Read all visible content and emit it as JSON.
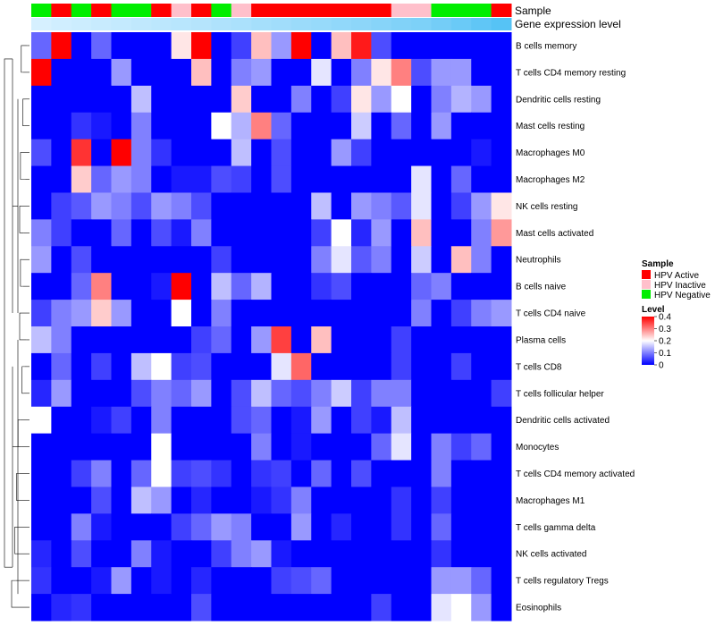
{
  "chart_data": {
    "type": "heatmap",
    "title": "",
    "annotations": {
      "sample_label": "Sample",
      "expression_label": "Gene expression level",
      "sample_groups": [
        "Negative",
        "Active",
        "Negative",
        "Active",
        "Negative",
        "Negative",
        "Active",
        "Inactive",
        "Active",
        "Negative",
        "Inactive",
        "Active",
        "Active",
        "Active",
        "Active",
        "Active",
        "Active",
        "Active",
        "Inactive",
        "Inactive",
        "Negative",
        "Negative",
        "Negative",
        "Active"
      ],
      "expression_levels": [
        0.05,
        0.08,
        0.1,
        0.12,
        0.14,
        0.16,
        0.18,
        0.2,
        0.22,
        0.25,
        0.27,
        0.3,
        0.32,
        0.35,
        0.37,
        0.4,
        0.42,
        0.45,
        0.48,
        0.5,
        0.55,
        0.6,
        0.65,
        0.7
      ]
    },
    "row_labels": [
      "B cells memory",
      "T cells CD4 memory resting",
      "Dendritic cells resting",
      "Mast cells resting",
      "Macrophages M0",
      "Macrophages M2",
      "NK cells resting",
      "Mast cells activated",
      "Neutrophils",
      "B cells naive",
      "T cells CD4 naive",
      "Plasma cells",
      "T cells CD8",
      "T cells follicular helper",
      "Dendritic cells activated",
      "Monocytes",
      "T cells CD4 memory activated",
      "Macrophages M1",
      "T cells gamma delta",
      "NK cells activated",
      "T cells regulatory  Tregs",
      "Eosinophils"
    ],
    "values": [
      [
        0.08,
        0.4,
        0,
        0.08,
        0,
        0,
        0,
        0.22,
        0.4,
        0,
        0.05,
        0.25,
        0.12,
        0.4,
        0,
        0.25,
        0.38,
        0.06,
        0,
        0,
        0,
        0,
        0,
        0
      ],
      [
        0.4,
        0,
        0,
        0,
        0.12,
        0,
        0,
        0,
        0.25,
        0,
        0.1,
        0.12,
        0,
        0,
        0.18,
        0,
        0.1,
        0.22,
        0.3,
        0.06,
        0.12,
        0.12,
        0,
        0
      ],
      [
        0,
        0,
        0,
        0,
        0,
        0.15,
        0,
        0,
        0,
        0,
        0.24,
        0,
        0,
        0.1,
        0,
        0.05,
        0.22,
        0.12,
        0.2,
        0,
        0.1,
        0.14,
        0.12,
        0
      ],
      [
        0,
        0,
        0.04,
        0.02,
        0,
        0.1,
        0,
        0,
        0,
        0.2,
        0.14,
        0.3,
        0.08,
        0,
        0,
        0,
        0.16,
        0,
        0.08,
        0,
        0.12,
        0,
        0,
        0
      ],
      [
        0.06,
        0,
        0.36,
        0,
        0.4,
        0.1,
        0.04,
        0,
        0,
        0,
        0.15,
        0,
        0.06,
        0,
        0,
        0.12,
        0.05,
        0,
        0,
        0,
        0,
        0,
        0.02,
        0
      ],
      [
        0,
        0,
        0.24,
        0.08,
        0.12,
        0.1,
        0,
        0.02,
        0.02,
        0.06,
        0.05,
        0,
        0.06,
        0,
        0,
        0,
        0,
        0,
        0,
        0.18,
        0,
        0.08,
        0,
        0
      ],
      [
        0,
        0.05,
        0.07,
        0.12,
        0.1,
        0.06,
        0.12,
        0.1,
        0.06,
        0,
        0,
        0,
        0,
        0,
        0.15,
        0,
        0.12,
        0.1,
        0.07,
        0.18,
        0,
        0.05,
        0.12,
        0.22
      ],
      [
        0.1,
        0.05,
        0,
        0,
        0.08,
        0,
        0.06,
        0.02,
        0.1,
        0,
        0,
        0,
        0,
        0,
        0.05,
        0.2,
        0.03,
        0.12,
        0,
        0.25,
        0,
        0,
        0.1,
        0.28
      ],
      [
        0.12,
        0,
        0.06,
        0,
        0,
        0,
        0,
        0,
        0,
        0.05,
        0,
        0,
        0,
        0,
        0.1,
        0.18,
        0.07,
        0.1,
        0,
        0.16,
        0,
        0.25,
        0.1,
        0
      ],
      [
        0,
        0,
        0.08,
        0.3,
        0,
        0,
        0.02,
        0.4,
        0,
        0.15,
        0.08,
        0.14,
        0,
        0,
        0.04,
        0.06,
        0,
        0,
        0,
        0.08,
        0.1,
        0,
        0,
        0
      ],
      [
        0.05,
        0.1,
        0.12,
        0.24,
        0.12,
        0,
        0,
        0.2,
        0,
        0.1,
        0,
        0,
        0,
        0,
        0,
        0,
        0,
        0,
        0,
        0.1,
        0,
        0.05,
        0.1,
        0.12
      ],
      [
        0.15,
        0.1,
        0,
        0,
        0,
        0,
        0,
        0,
        0.05,
        0.08,
        0,
        0.12,
        0.35,
        0,
        0.25,
        0,
        0,
        0,
        0.05,
        0,
        0,
        0,
        0,
        0
      ],
      [
        0,
        0.08,
        0,
        0.05,
        0,
        0.15,
        0.2,
        0.05,
        0.06,
        0,
        0,
        0,
        0.18,
        0.32,
        0,
        0,
        0,
        0,
        0.05,
        0,
        0,
        0.05,
        0,
        0
      ],
      [
        0.03,
        0.12,
        0,
        0,
        0,
        0.06,
        0.1,
        0.08,
        0.12,
        0,
        0.06,
        0.15,
        0.08,
        0.06,
        0.1,
        0.16,
        0.05,
        0.1,
        0.1,
        0,
        0,
        0,
        0,
        0.05
      ],
      [
        0.2,
        0,
        0,
        0.02,
        0.05,
        0,
        0.1,
        0,
        0,
        0,
        0.06,
        0.08,
        0,
        0.02,
        0.12,
        0,
        0.05,
        0.02,
        0.15,
        0,
        0,
        0,
        0,
        0
      ],
      [
        0,
        0,
        0,
        0,
        0,
        0,
        0.2,
        0,
        0,
        0,
        0,
        0.1,
        0,
        0.02,
        0,
        0,
        0,
        0.08,
        0.18,
        0,
        0.1,
        0.05,
        0.08,
        0
      ],
      [
        0,
        0,
        0.05,
        0.1,
        0,
        0.08,
        0.2,
        0.05,
        0.06,
        0.04,
        0,
        0.04,
        0.05,
        0,
        0.08,
        0,
        0.06,
        0,
        0,
        0,
        0.1,
        0,
        0,
        0
      ],
      [
        0,
        0,
        0,
        0.06,
        0,
        0.15,
        0.12,
        0,
        0.03,
        0,
        0,
        0.02,
        0.04,
        0.1,
        0,
        0,
        0,
        0,
        0.04,
        0,
        0.05,
        0,
        0,
        0
      ],
      [
        0,
        0,
        0.1,
        0.02,
        0,
        0,
        0,
        0.05,
        0.08,
        0.12,
        0.1,
        0,
        0,
        0.12,
        0,
        0.03,
        0,
        0,
        0.04,
        0,
        0.08,
        0,
        0,
        0
      ],
      [
        0.03,
        0,
        0.06,
        0,
        0,
        0.1,
        0.02,
        0,
        0,
        0.05,
        0.1,
        0.12,
        0.02,
        0,
        0,
        0,
        0,
        0,
        0,
        0,
        0.04,
        0,
        0,
        0
      ],
      [
        0.04,
        0,
        0,
        0.02,
        0.12,
        0,
        0.02,
        0,
        0.03,
        0,
        0,
        0,
        0.05,
        0.06,
        0.08,
        0,
        0,
        0,
        0,
        0,
        0.12,
        0.12,
        0.08,
        0
      ],
      [
        0,
        0.03,
        0.04,
        0,
        0,
        0,
        0,
        0,
        0.06,
        0,
        0,
        0,
        0,
        0,
        0,
        0,
        0,
        0.05,
        0,
        0,
        0.18,
        0.2,
        0.12,
        0
      ]
    ],
    "legend": {
      "sample_title": "Sample",
      "sample_items": [
        {
          "label": "HPV Active",
          "color": "#ff0000"
        },
        {
          "label": "HPV Inactive",
          "color": "#ffc0cb"
        },
        {
          "label": "HPV Negative",
          "color": "#00ee00"
        }
      ],
      "level_title": "Level",
      "level_ticks": [
        "0.4",
        "0.3",
        "0.2",
        "0.1",
        "0"
      ],
      "level_range": [
        0,
        0.4
      ]
    },
    "colors": {
      "low": "#0000ff",
      "mid": "#ffffff",
      "high": "#ff0000",
      "group_active": "#ff0000",
      "group_inactive": "#ffc0cb",
      "group_negative": "#00ee00",
      "expr_low": "#d6f0ff",
      "expr_high": "#56c3f5"
    }
  }
}
